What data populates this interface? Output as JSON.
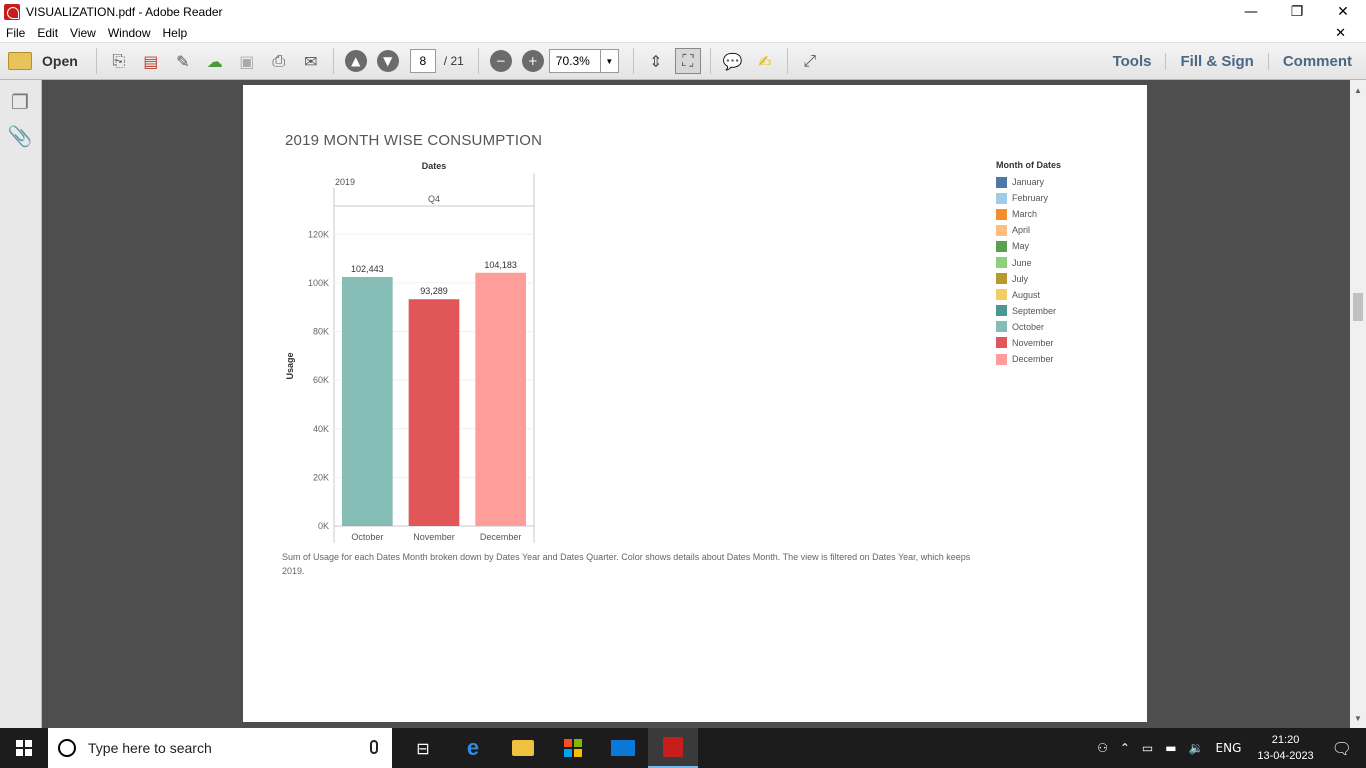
{
  "window": {
    "title": "VISUALIZATION.pdf - Adobe Reader",
    "minimize": "—",
    "restore": "❐",
    "close": "✕"
  },
  "menu": {
    "items": [
      "File",
      "Edit",
      "View",
      "Window",
      "Help"
    ],
    "close_doc": "✕"
  },
  "toolbar": {
    "open_label": "Open",
    "current_page": "8",
    "page_count": "/ 21",
    "zoom": "70.3%",
    "tools_label": "Tools",
    "fill_sign_label": "Fill & Sign",
    "comment_label": "Comment"
  },
  "document": {
    "chart_title": "2019 MONTH WISE CONSUMPTION",
    "caption": "Sum of Usage for each Dates Month broken down by Dates Year and Dates Quarter.  Color shows details about Dates Month. The view is filtered on Dates Year, which keeps 2019.",
    "legend_title": "Month of Dates",
    "legend": [
      {
        "name": "January",
        "color": "#4e79a7"
      },
      {
        "name": "February",
        "color": "#a0cbe8"
      },
      {
        "name": "March",
        "color": "#f28e2b"
      },
      {
        "name": "April",
        "color": "#ffbe7d"
      },
      {
        "name": "May",
        "color": "#59a14f"
      },
      {
        "name": "June",
        "color": "#8cd17d"
      },
      {
        "name": "July",
        "color": "#b6992d"
      },
      {
        "name": "August",
        "color": "#f1ce63"
      },
      {
        "name": "September",
        "color": "#499894"
      },
      {
        "name": "October",
        "color": "#86bcb6"
      },
      {
        "name": "November",
        "color": "#e15759"
      },
      {
        "name": "December",
        "color": "#ff9d9a"
      }
    ]
  },
  "chart_data": {
    "type": "bar",
    "header_top": "Dates",
    "header_year": "2019",
    "header_quarter": "Q4",
    "categories": [
      "October",
      "November",
      "December"
    ],
    "values": [
      102443,
      93289,
      104183
    ],
    "value_labels": [
      "102,443",
      "93,289",
      "104,183"
    ],
    "colors": [
      "#86bcb6",
      "#e15759",
      "#ff9d9a"
    ],
    "ylabel": "Usage",
    "ylim": [
      0,
      130000
    ],
    "yticks": [
      0,
      20000,
      40000,
      60000,
      80000,
      100000,
      120000
    ],
    "ytick_labels": [
      "0K",
      "20K",
      "40K",
      "60K",
      "80K",
      "100K",
      "120K"
    ],
    "grid": true
  },
  "taskbar": {
    "search_placeholder": "Type here to search",
    "language": "ENG",
    "time": "21:20",
    "date": "13-04-2023"
  }
}
